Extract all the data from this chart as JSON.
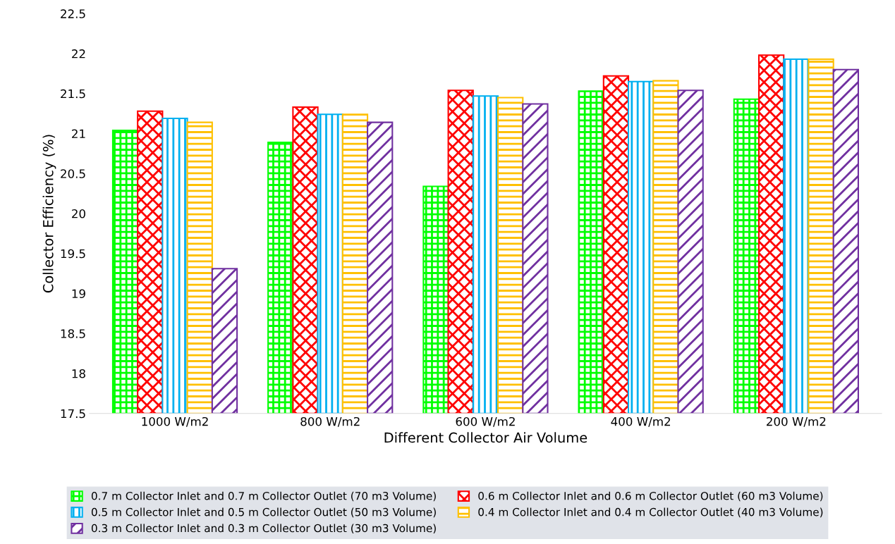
{
  "chart_data": {
    "type": "bar",
    "xlabel": "Different Collector Air Volume",
    "ylabel": "Collector Efficiency (%)",
    "categories": [
      "1000 W/m2",
      "800 W/m2",
      "600 W/m2",
      "400 W/m2",
      "200 W/m2"
    ],
    "series": [
      {
        "name": "0.7 m Collector Inlet and 0.7 m Collector Outlet (70 m3 Volume)",
        "color": "#00ff00",
        "values": [
          21.04,
          20.89,
          20.34,
          21.53,
          21.43
        ]
      },
      {
        "name": "0.6 m Collector Inlet and 0.6 m Collector Outlet (60 m3 Volume)",
        "color": "#ff0000",
        "values": [
          21.28,
          21.33,
          21.54,
          21.72,
          21.98
        ]
      },
      {
        "name": "0.5 m Collector Inlet and 0.5 m Collector Outlet (50 m3 Volume)",
        "color": "#00b0f0",
        "values": [
          21.19,
          21.24,
          21.47,
          21.65,
          21.93
        ]
      },
      {
        "name": "0.4 m Collector Inlet and 0.4 m Collector Outlet (40 m3 Volume)",
        "color": "#ffc000",
        "values": [
          21.14,
          21.24,
          21.45,
          21.66,
          21.93
        ]
      },
      {
        "name": "0.3 m Collector Inlet and 0.3 m Collector Outlet (30 m3 Volume)",
        "color": "#7030a0",
        "values": [
          19.31,
          21.14,
          21.37,
          21.54,
          21.8
        ]
      }
    ],
    "ylim": [
      17.5,
      22.5
    ],
    "yticks": [
      17.5,
      18,
      18.5,
      19,
      19.5,
      20,
      20.5,
      21,
      21.5,
      22,
      22.5
    ],
    "grid": false,
    "legend": "bottom"
  }
}
